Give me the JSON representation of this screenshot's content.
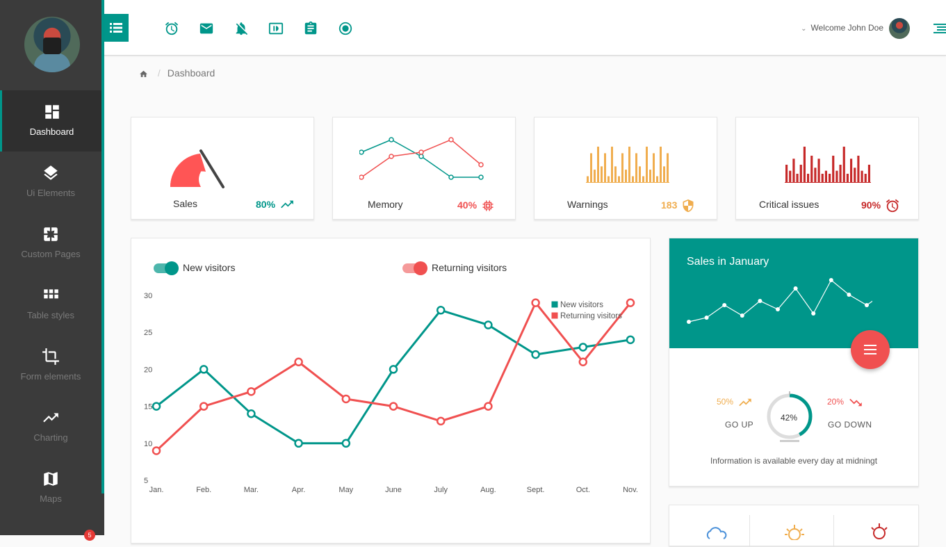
{
  "sidebar": {
    "items": [
      {
        "label": "Dashboard",
        "icon": "dashboard-icon"
      },
      {
        "label": "Ui Elements",
        "icon": "layers-icon"
      },
      {
        "label": "Custom Pages",
        "icon": "pages-icon"
      },
      {
        "label": "Table styles",
        "icon": "grid-icon"
      },
      {
        "label": "Form elements",
        "icon": "crop-icon"
      },
      {
        "label": "Charting",
        "icon": "trending-up-icon"
      },
      {
        "label": "Maps",
        "icon": "map-icon"
      }
    ],
    "badge": "5"
  },
  "topbar": {
    "icons": [
      "alarm-icon",
      "mail-icon",
      "notifications-off-icon",
      "brightness-icon",
      "clipboard-icon",
      "radio-button-icon"
    ],
    "welcome": "Welcome John Doe"
  },
  "breadcrumb": {
    "current": "Dashboard"
  },
  "stats": [
    {
      "label": "Sales",
      "value": "80%",
      "color": "#00968a",
      "icon": "trending-up-icon"
    },
    {
      "label": "Memory",
      "value": "40%",
      "color": "#f05050",
      "icon": "chip-icon"
    },
    {
      "label": "Warnings",
      "value": "183",
      "color": "#f0ad4e",
      "icon": "shield-icon"
    },
    {
      "label": "Critical issues",
      "value": "90%",
      "color": "#c62828",
      "icon": "alarm-icon"
    }
  ],
  "visitors": {
    "toggle_new": "New visitors",
    "toggle_returning": "Returning visitors"
  },
  "chart_data": {
    "type": "line",
    "categories": [
      "Jan.",
      "Feb.",
      "Mar.",
      "Apr.",
      "May",
      "June",
      "July",
      "Aug.",
      "Sept.",
      "Oct.",
      "Nov."
    ],
    "series": [
      {
        "name": "New visitors",
        "color": "#00968a",
        "values": [
          15,
          20,
          14,
          10,
          10,
          20,
          28,
          26,
          22,
          23,
          24
        ]
      },
      {
        "name": "Returning visitors",
        "color": "#f05050",
        "values": [
          9,
          15,
          17,
          21,
          16,
          15,
          13,
          15,
          29,
          21,
          29
        ]
      }
    ],
    "yticks": [
      "30",
      "25",
      "20",
      "15",
      "10",
      "5"
    ],
    "ylim": [
      5,
      30
    ],
    "legend": "top-right"
  },
  "sales_january": {
    "title": "Sales in January",
    "sparkline": [
      2,
      3,
      6,
      3.5,
      7,
      5,
      10,
      4,
      12,
      8.5,
      6,
      9
    ],
    "go_up_pct": "50%",
    "go_up_label": "GO UP",
    "go_down_pct": "20%",
    "go_down_label": "GO DOWN",
    "donut_value": "42%",
    "donut_fraction": 0.42,
    "info": "Information is available every day at midningt"
  },
  "minis": {
    "memory": {
      "teal": [
        7,
        10,
        6,
        1,
        1
      ],
      "red": [
        1,
        6,
        7,
        10,
        4
      ]
    },
    "warnings": [
      2,
      9,
      4,
      11,
      5,
      9,
      2,
      11,
      5,
      2,
      9,
      4,
      11,
      2,
      9,
      5,
      2,
      11,
      4,
      9,
      2,
      11,
      5,
      9
    ],
    "critical": [
      6,
      4,
      8,
      3,
      6,
      12,
      3,
      9,
      5,
      8,
      3,
      4,
      3,
      9,
      4,
      6,
      12,
      3,
      8,
      5,
      9,
      4,
      3,
      6
    ]
  }
}
